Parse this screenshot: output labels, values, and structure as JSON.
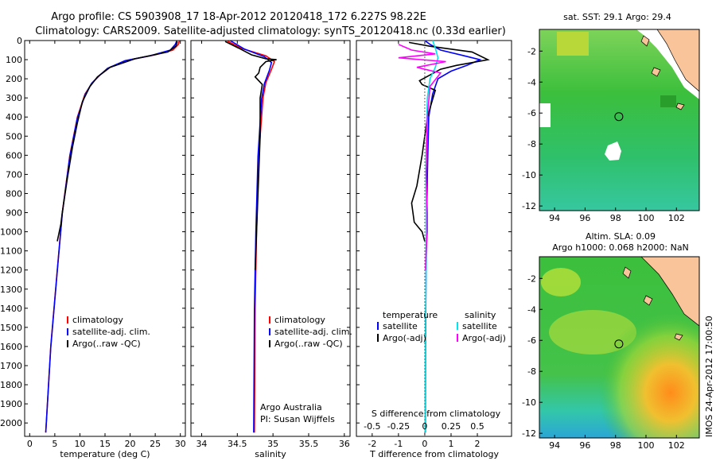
{
  "header": {
    "line1": "Argo profile: CS 5903908_17 18-Apr-2012 20120418_172 6.227S 98.22E",
    "line2": "Climatology: CARS2009. Satellite-adjusted climatology: synTS_20120418.nc (0.33d earlier)"
  },
  "colors": {
    "climatology": "#ff0000",
    "satellite": "#0000ff",
    "argo": "#000000",
    "salinity_sat": "#00e5ee",
    "salinity_argo": "#ff00ff"
  },
  "chart_data": [
    {
      "type": "line",
      "xlabel": "temperature (deg C)",
      "xlim": [
        -1,
        31
      ],
      "xticks": [
        0,
        5,
        10,
        15,
        20,
        25,
        30
      ],
      "ylim": [
        2070,
        0
      ],
      "yticks": [
        0,
        100,
        200,
        300,
        400,
        500,
        600,
        700,
        800,
        900,
        1000,
        1100,
        1200,
        1300,
        1400,
        1500,
        1600,
        1700,
        1800,
        1900,
        2000
      ],
      "legend": [
        "climatology",
        "satellite-adj. clim.",
        "Argo(..raw -QC)"
      ],
      "series": [
        {
          "name": "climatology",
          "points": [
            [
              29.8,
              0
            ],
            [
              29.6,
              20
            ],
            [
              28.5,
              50
            ],
            [
              25,
              75
            ],
            [
              20,
              100
            ],
            [
              16,
              140
            ],
            [
              14,
              180
            ],
            [
              12.5,
              220
            ],
            [
              11,
              280
            ],
            [
              9.5,
              400
            ],
            [
              8,
              600
            ],
            [
              6.5,
              900
            ],
            [
              5.5,
              1200
            ],
            [
              4.2,
              1600
            ],
            [
              3.2,
              2050
            ]
          ]
        },
        {
          "name": "satellite-adj. clim.",
          "points": [
            [
              29.3,
              0
            ],
            [
              29,
              20
            ],
            [
              28,
              50
            ],
            [
              24,
              80
            ],
            [
              19,
              105
            ],
            [
              15.5,
              145
            ],
            [
              13.8,
              185
            ],
            [
              12.3,
              225
            ],
            [
              11,
              285
            ],
            [
              9.5,
              405
            ],
            [
              8,
              605
            ],
            [
              6.5,
              905
            ],
            [
              5.5,
              1205
            ],
            [
              4.2,
              1605
            ],
            [
              3.2,
              2050
            ]
          ]
        },
        {
          "name": "Argo(..raw -QC)",
          "points": [
            [
              29.4,
              5
            ],
            [
              29.1,
              30
            ],
            [
              27.5,
              60
            ],
            [
              21,
              95
            ],
            [
              16,
              140
            ],
            [
              13.5,
              190
            ],
            [
              12,
              240
            ],
            [
              10.5,
              320
            ],
            [
              9.5,
              430
            ],
            [
              8.5,
              560
            ],
            [
              7.5,
              720
            ],
            [
              6.5,
              900
            ],
            [
              6.2,
              960
            ],
            [
              5.5,
              1050
            ]
          ]
        }
      ]
    },
    {
      "type": "line",
      "xlabel": "salinity",
      "xlim": [
        33.85,
        36.08
      ],
      "xticks": [
        34,
        34.5,
        35,
        35.5,
        36
      ],
      "ylim": [
        2070,
        0
      ],
      "legend": [
        "climatology",
        "satellite-adj. clim.",
        "Argo(..raw -QC)"
      ],
      "annotations": [
        "Argo Australia",
        "PI: Susan Wijffels"
      ],
      "series": [
        {
          "name": "climatology",
          "points": [
            [
              34.35,
              0
            ],
            [
              34.55,
              40
            ],
            [
              34.9,
              80
            ],
            [
              35.02,
              110
            ],
            [
              34.98,
              150
            ],
            [
              34.9,
              220
            ],
            [
              34.86,
              300
            ],
            [
              34.8,
              600
            ],
            [
              34.77,
              1000
            ],
            [
              34.75,
              1400
            ],
            [
              34.74,
              2050
            ]
          ]
        },
        {
          "name": "satellite-adj. clim.",
          "points": [
            [
              34.4,
              0
            ],
            [
              34.6,
              45
            ],
            [
              34.88,
              85
            ],
            [
              34.98,
              115
            ],
            [
              34.95,
              155
            ],
            [
              34.88,
              225
            ],
            [
              34.84,
              305
            ],
            [
              34.79,
              605
            ],
            [
              34.76,
              1005
            ],
            [
              34.74,
              1405
            ],
            [
              34.73,
              2050
            ]
          ]
        },
        {
          "name": "Argo(..raw -QC)",
          "points": [
            [
              34.33,
              5
            ],
            [
              34.52,
              40
            ],
            [
              34.7,
              75
            ],
            [
              34.9,
              95
            ],
            [
              35.05,
              100
            ],
            [
              34.9,
              110
            ],
            [
              34.82,
              140
            ],
            [
              34.8,
              170
            ],
            [
              34.75,
              190
            ],
            [
              34.85,
              230
            ],
            [
              34.82,
              300
            ],
            [
              34.82,
              500
            ],
            [
              34.8,
              700
            ],
            [
              34.78,
              900
            ],
            [
              34.76,
              1100
            ],
            [
              34.75,
              1200
            ]
          ]
        }
      ]
    },
    {
      "type": "line",
      "xlabel": "T difference from climatology",
      "xlim": [
        -2.6,
        3.3
      ],
      "xticks": [
        -2,
        -1,
        0,
        1,
        2
      ],
      "secondary_xlabel": "S difference from climatology",
      "secondary_xticks": [
        "-0.5",
        "-0.25",
        "0",
        "0.25",
        "0.5"
      ],
      "legend": [
        "temperature",
        "salinity",
        "satellite",
        "Argo(-adj)",
        "satellite",
        "Argo(-adj)"
      ],
      "series": [
        {
          "name": "satellite",
          "group": "temperature",
          "points": [
            [
              0,
              0
            ],
            [
              0.2,
              20
            ],
            [
              0.6,
              50
            ],
            [
              1.5,
              80
            ],
            [
              2.1,
              100
            ],
            [
              1.6,
              130
            ],
            [
              1,
              160
            ],
            [
              0.5,
              200
            ],
            [
              0.3,
              280
            ],
            [
              0.15,
              400
            ],
            [
              0.1,
              700
            ],
            [
              0.05,
              1200
            ],
            [
              0.03,
              1600
            ],
            [
              0.02,
              2050
            ]
          ]
        },
        {
          "name": "Argo(-adj)",
          "group": "temperature",
          "points": [
            [
              -0.6,
              10
            ],
            [
              0.2,
              30
            ],
            [
              1.8,
              60
            ],
            [
              2.4,
              100
            ],
            [
              1.2,
              130
            ],
            [
              0.6,
              150
            ],
            [
              -0.2,
              210
            ],
            [
              -0.1,
              230
            ],
            [
              0.4,
              260
            ],
            [
              0.1,
              400
            ],
            [
              -0.1,
              600
            ],
            [
              -0.3,
              760
            ],
            [
              -0.5,
              850
            ],
            [
              -0.4,
              950
            ],
            [
              -0.1,
              1000
            ],
            [
              0,
              1050
            ]
          ]
        },
        {
          "name": "satellite",
          "group": "salinity",
          "points": [
            [
              0.3,
              0
            ],
            [
              0.4,
              40
            ],
            [
              0.5,
              90
            ],
            [
              0.4,
              140
            ],
            [
              0.2,
              200
            ],
            [
              0.1,
              300
            ],
            [
              0.05,
              600
            ],
            [
              0.05,
              1200
            ],
            [
              0.02,
              1600
            ],
            [
              0.01,
              2050
            ]
          ]
        },
        {
          "name": "Argo(-adj)",
          "group": "salinity",
          "points": [
            [
              -1,
              20
            ],
            [
              -0.5,
              50
            ],
            [
              0.4,
              70
            ],
            [
              -1,
              90
            ],
            [
              0.8,
              110
            ],
            [
              -0.3,
              140
            ],
            [
              0.6,
              170
            ],
            [
              0.2,
              240
            ],
            [
              0.1,
              400
            ],
            [
              0.05,
              700
            ],
            [
              0.1,
              900
            ],
            [
              0.1,
              1000
            ],
            [
              0.05,
              1100
            ],
            [
              0.03,
              1200
            ]
          ]
        }
      ]
    }
  ],
  "maps": [
    {
      "title": "sat. SST: 29.1  Argo: 29.4",
      "xticks": [
        "94",
        "96",
        "98",
        "100",
        "102"
      ],
      "yticks": [
        "-2",
        "-4",
        "-6",
        "-8",
        "-10",
        "-12"
      ],
      "xlim": [
        93,
        103.5
      ],
      "ylim": [
        -12.3,
        -0.6
      ],
      "marker": [
        98.22,
        -6.227
      ]
    },
    {
      "title1": "Altim. SLA: 0.09",
      "title2": "Argo h1000: 0.068  h2000: NaN",
      "xticks": [
        "94",
        "96",
        "98",
        "100",
        "102"
      ],
      "yticks": [
        "-2",
        "-4",
        "-6",
        "-8",
        "-10",
        "-12"
      ],
      "xlim": [
        93,
        103.5
      ],
      "ylim": [
        -12.3,
        -0.6
      ],
      "marker": [
        98.22,
        -6.227
      ]
    }
  ],
  "footer": "IMOS 24-Apr-2012 17:00:50"
}
